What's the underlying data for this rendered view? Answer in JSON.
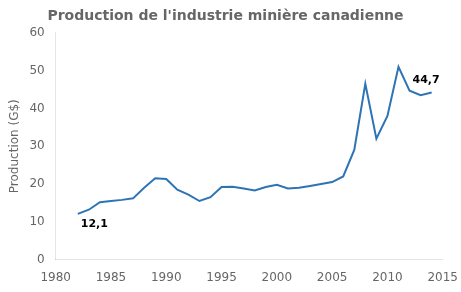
{
  "chart_data": {
    "type": "line",
    "title": "Production de l'industrie minière canadienne",
    "ylabel": "Production (G$)",
    "x": [
      1982,
      1983,
      1984,
      1985,
      1986,
      1987,
      1988,
      1989,
      1990,
      1991,
      1992,
      1993,
      1994,
      1995,
      1996,
      1997,
      1998,
      1999,
      2000,
      2001,
      2002,
      2003,
      2004,
      2005,
      2006,
      2007,
      2008,
      2009,
      2010,
      2011,
      2012,
      2013,
      2014
    ],
    "values": [
      12.1,
      13.2,
      15.2,
      15.5,
      15.8,
      16.2,
      19.0,
      21.5,
      21.3,
      18.5,
      17.2,
      15.5,
      16.5,
      19.2,
      19.3,
      18.8,
      18.3,
      19.2,
      19.8,
      18.8,
      19.0,
      19.5,
      20.0,
      20.5,
      22.0,
      29.0,
      46.5,
      32.0,
      38.0,
      51.0,
      44.7,
      43.5,
      44.2
    ],
    "color": "#2E74B5",
    "xlim": [
      1980,
      2015
    ],
    "xticks": [
      1980,
      1985,
      1990,
      1995,
      2000,
      2005,
      2010,
      2015
    ],
    "ylim": [
      0,
      60
    ],
    "yticks": [
      0,
      10,
      20,
      30,
      40,
      50,
      60
    ],
    "grid": false,
    "annotations": [
      {
        "text": "12,1",
        "x": 1982,
        "y": 12.1
      },
      {
        "text": "44,7",
        "x": 2012,
        "y": 44.7
      }
    ]
  }
}
